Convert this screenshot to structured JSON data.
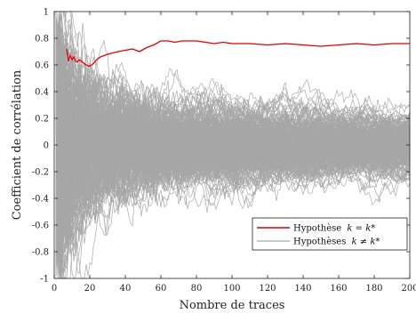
{
  "chart_data": {
    "type": "line",
    "xlabel": "Nombre de traces",
    "ylabel": "Coefficient de corrélation",
    "xlim": [
      0,
      200
    ],
    "ylim": [
      -1,
      1
    ],
    "xticks": [
      0,
      20,
      40,
      60,
      80,
      100,
      120,
      140,
      160,
      180,
      200
    ],
    "yticks": [
      -1,
      -0.8,
      -0.6,
      -0.4,
      -0.2,
      0,
      0.2,
      0.4,
      0.6,
      0.8,
      1
    ],
    "ytick_labels": [
      "-1",
      "-0.8",
      "-0.6",
      "-0.4",
      "-0.2",
      "0",
      "0.2",
      "0.4",
      "0.6",
      "0.8",
      "1"
    ],
    "grid": false,
    "legend_position": "lower-right",
    "series": [
      {
        "name": "Hypothèse k = k*",
        "color": "#e00000",
        "x": [
          7,
          8,
          9,
          10,
          11,
          12,
          13,
          14,
          15,
          16,
          18,
          20,
          22,
          24,
          26,
          28,
          30,
          33,
          36,
          40,
          44,
          48,
          52,
          56,
          60,
          64,
          68,
          72,
          76,
          80,
          85,
          90,
          95,
          100,
          110,
          120,
          130,
          140,
          150,
          160,
          170,
          180,
          190,
          200
        ],
        "y": [
          0.72,
          0.63,
          0.67,
          0.64,
          0.66,
          0.63,
          0.62,
          0.64,
          0.63,
          0.62,
          0.6,
          0.59,
          0.61,
          0.64,
          0.66,
          0.67,
          0.68,
          0.69,
          0.7,
          0.71,
          0.72,
          0.7,
          0.73,
          0.75,
          0.78,
          0.78,
          0.77,
          0.78,
          0.78,
          0.78,
          0.77,
          0.76,
          0.77,
          0.76,
          0.76,
          0.75,
          0.76,
          0.75,
          0.74,
          0.75,
          0.76,
          0.75,
          0.76,
          0.76
        ]
      },
      {
        "name": "Hypothèses k ≠ k*",
        "color": "#a6a6a6",
        "count": 255,
        "x_start": 1,
        "x_end": 200,
        "y_range_at_x_2": [
          -1,
          1
        ],
        "y_range_at_x_20": [
          -0.6,
          0.65
        ],
        "y_range_at_x_50": [
          -0.36,
          0.37
        ],
        "y_range_at_x_100": [
          -0.27,
          0.27
        ],
        "y_range_at_x_200": [
          -0.22,
          0.2
        ]
      }
    ]
  },
  "legend": {
    "item1_text": "Hypothèse",
    "item1_math": "k = k*",
    "item2_text": "Hypothèses",
    "item2_math": "k ≠ k*"
  }
}
